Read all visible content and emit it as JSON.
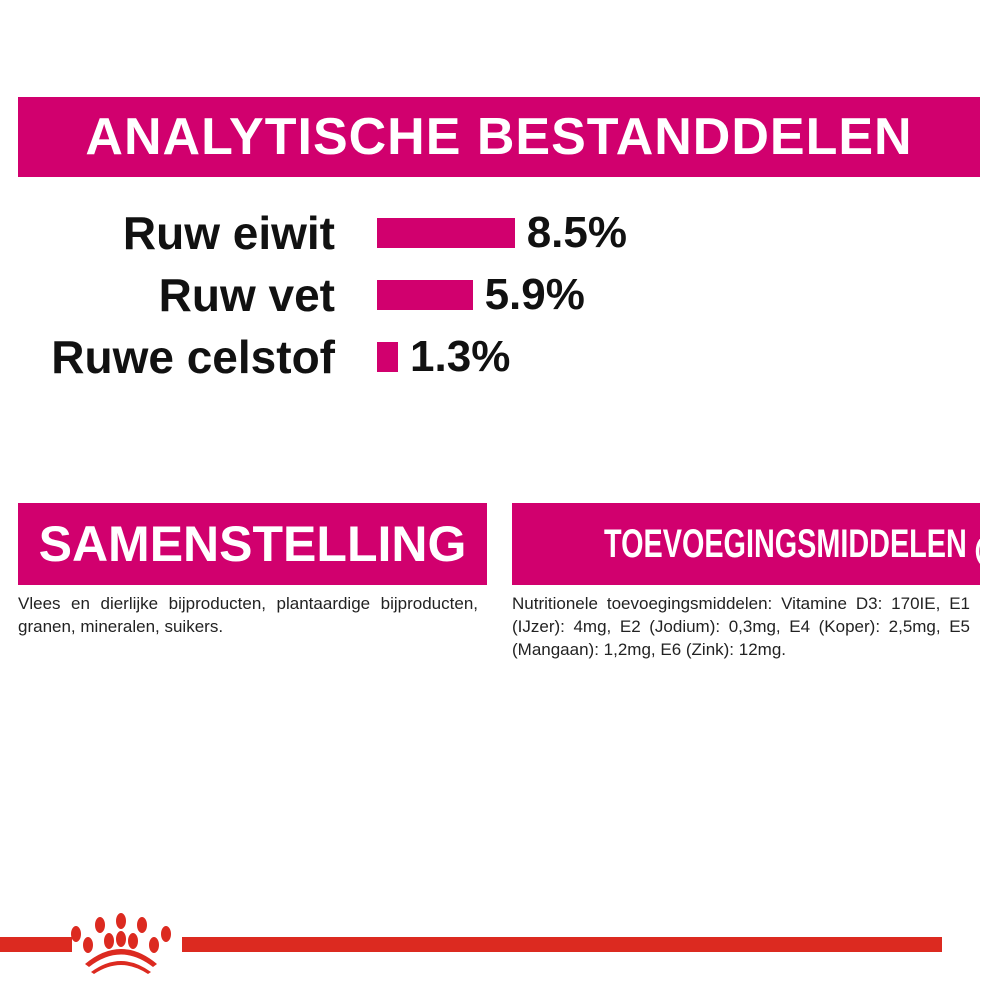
{
  "header": {
    "title": "ANALYTISCHE BESTANDDELEN"
  },
  "analysis": [
    {
      "label": "Ruw eiwit",
      "value": "8.5%",
      "percent": 8.5
    },
    {
      "label": "Ruw vet",
      "value": "5.9%",
      "percent": 5.9
    },
    {
      "label": "Ruwe celstof",
      "value": "1.3%",
      "percent": 1.3
    }
  ],
  "composition": {
    "title": "SAMENSTELLING",
    "text": "Vlees en dierlijke bijproducten, plantaardige bijproducten, granen, mineralen, suikers."
  },
  "additives": {
    "title": "TOEVOEGINGSMIDDELEN",
    "unit": "(/kg)",
    "text": "Nutritionele toevoegingsmiddelen: Vitamine D3: 170IE, E1 (IJzer): 4mg, E2 (Jodium): 0,3mg, E4 (Koper): 2,5mg, E5 (Mangaan): 1,2mg, E6 (Zink): 12mg."
  },
  "colors": {
    "accent": "#d1006e",
    "brand_red": "#dc2a20"
  },
  "logo": {
    "icon": "royal-canin-crown-icon"
  }
}
